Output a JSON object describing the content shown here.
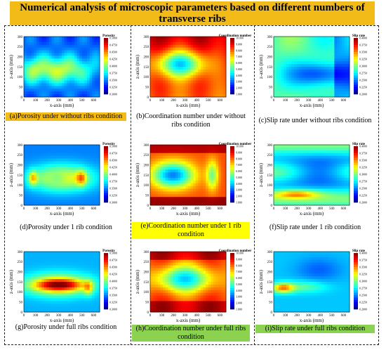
{
  "title": "Numerical analysis of microscopic parameters based on different numbers of transverse ribs",
  "colors": {
    "title_bg": "#f3bb18",
    "highlight_yellow": "#ffff00",
    "highlight_green": "#8ad24f",
    "highlight_orange": "#f3bb18"
  },
  "axes": {
    "xlabel": "x-axis (mm)",
    "ylabel": "z-axis (mm)",
    "xticks": [
      "0",
      "100",
      "200",
      "300",
      "400",
      "500",
      "600"
    ],
    "yticks": [
      "0",
      "50",
      "100",
      "150",
      "200",
      "250",
      "300"
    ]
  },
  "colorbars": {
    "porosity": {
      "title": "Porosity",
      "ticks": [
        "0.5000",
        "0.4750",
        "0.4500",
        "0.4250",
        "0.4000",
        "0.3750",
        "0.3500",
        "0.3250",
        "0.3000"
      ]
    },
    "coordination": {
      "title": "Coordination number",
      "ticks": [
        "10.000",
        "9.000",
        "8.000",
        "7.000",
        "6.000",
        "5.000",
        "4.000",
        "3.000",
        "2.000",
        "1.000"
      ]
    },
    "sliprate": {
      "title": "Slip rate",
      "ticks": [
        "0.4000",
        "0.3750",
        "0.3500",
        "0.3250",
        "0.3000",
        "0.2750",
        "0.2500",
        "0.2250",
        "0.2000"
      ]
    }
  },
  "panels": [
    {
      "id": "a",
      "caption": "(a)Porosity under without ribs condition",
      "colorbar": "porosity",
      "pattern": "por_none",
      "highlight": "orange"
    },
    {
      "id": "b",
      "caption": "(b)Coordination number under without ribs condition",
      "colorbar": "coordination",
      "pattern": "coord_none",
      "highlight": ""
    },
    {
      "id": "c",
      "caption": "(c)Slip rate under without ribs condition",
      "colorbar": "sliprate",
      "pattern": "slip_none",
      "highlight": ""
    },
    {
      "id": "d",
      "caption": "(d)Porosity under 1 rib condition",
      "colorbar": "porosity",
      "pattern": "por_one",
      "highlight": ""
    },
    {
      "id": "e",
      "caption": "(e)Coordination number under 1 rib condition",
      "colorbar": "coordination",
      "pattern": "coord_one",
      "highlight": "yellow"
    },
    {
      "id": "f",
      "caption": "(f)Slip rate under 1 rib condition",
      "colorbar": "sliprate",
      "pattern": "slip_one",
      "highlight": ""
    },
    {
      "id": "g",
      "caption": "(g)Porosity under full ribs condition",
      "colorbar": "porosity",
      "pattern": "por_full",
      "highlight": ""
    },
    {
      "id": "h",
      "caption": "(h)Coordination number under full ribs condition",
      "colorbar": "coordination",
      "pattern": "coord_full",
      "highlight": "green"
    },
    {
      "id": "i",
      "caption": "(i)Slip rate under full ribs condition",
      "colorbar": "sliprate",
      "pattern": "slip_full",
      "highlight": "green"
    }
  ]
}
